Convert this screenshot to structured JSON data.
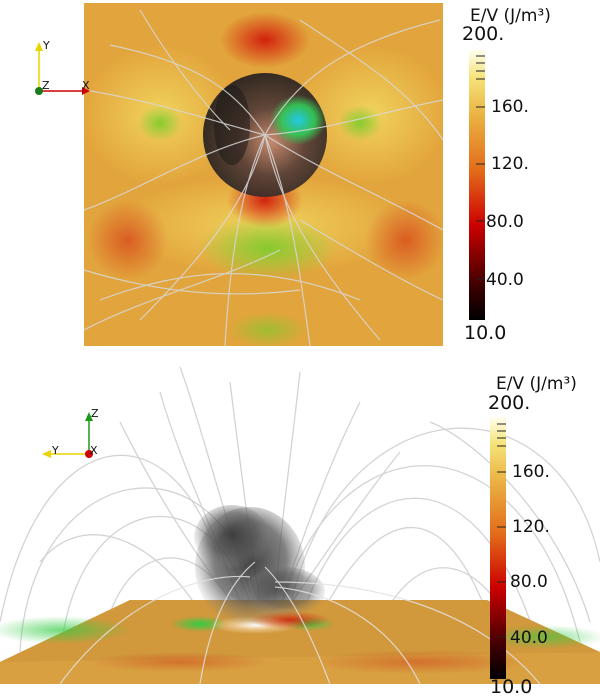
{
  "colorbar": {
    "title": "E/V (J/m³)",
    "ticks": [
      "200.",
      "160.",
      "120.",
      "80.0",
      "40.0",
      "10.0"
    ]
  },
  "top_view": {
    "triad": {
      "up": "Y",
      "right": "X",
      "center": "Z"
    }
  },
  "side_view": {
    "triad": {
      "up": "Z",
      "left": "Y",
      "center": "X"
    }
  },
  "colors": {
    "field_lines": "#d4d4d4",
    "background": "#ffffff",
    "colormap": [
      "#000000",
      "#cc0000",
      "#e89a3a",
      "#ffff99",
      "#fffff0"
    ]
  }
}
